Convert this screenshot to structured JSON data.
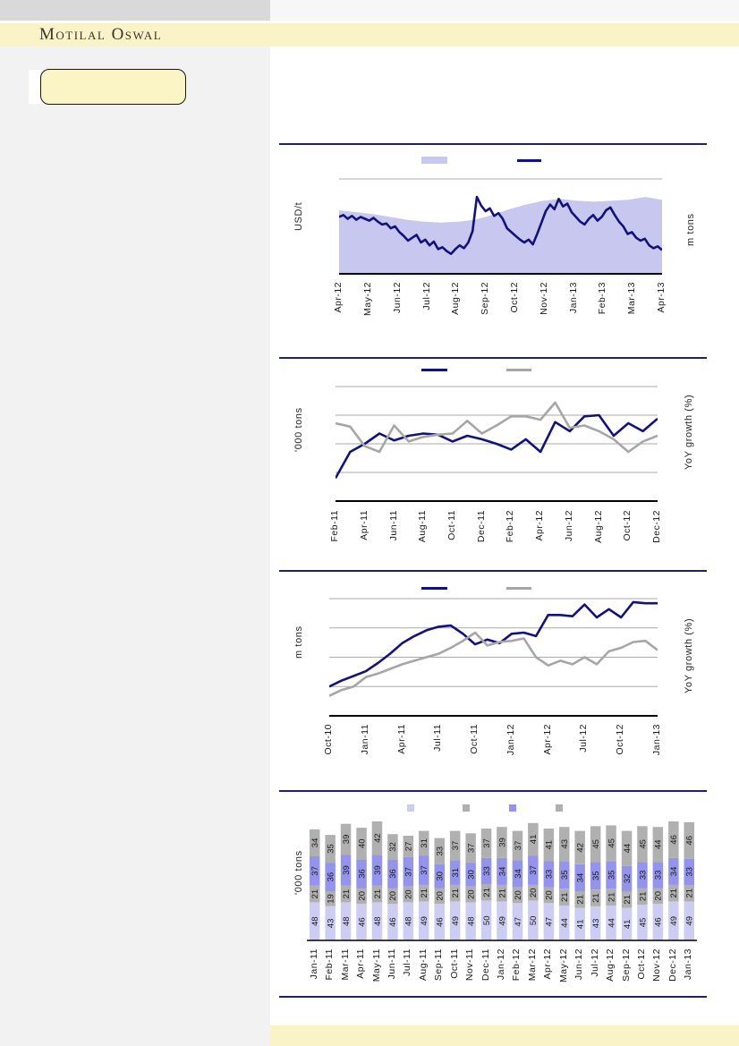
{
  "header": {
    "brand": "Motilal Oswal"
  },
  "sidebar": {
    "note_box_label": ""
  },
  "theme": {
    "brand_band": "#FAF3C8",
    "brand_text": "#39332C",
    "topbar_left": "#D9D9D9",
    "topbar_right": "#F7F7F7",
    "left_column": "#F2F2F2",
    "note_box_fill": "#FBF4C4",
    "divider": "#1F1F78",
    "grid_color": "#A9A9A9",
    "navy": "#12127D",
    "gray_line": "#A6A6A6",
    "area_lavender": "#C7C7F0",
    "bar_light": "#CDCDF4",
    "bar_gray": "#B0B0B0",
    "bar_purple": "#9494EC",
    "bottom_band": "#FAF3C8"
  },
  "chart_data": [
    {
      "type": "area_line",
      "title": "",
      "y_left": "USD/t",
      "y_right": "m tons",
      "value_scale": "percent of plot height (numeric axis tick labels not visible in source)",
      "x_labels": [
        "Apr-12",
        "May-12",
        "Jun-12",
        "Jul-12",
        "Aug-12",
        "Sep-12",
        "Oct-12",
        "Nov-12",
        "Jan-13",
        "Feb-13",
        "Mar-13",
        "Apr-13"
      ],
      "gridlines_pct": [
        100
      ],
      "series": [
        {
          "name": "",
          "type": "area",
          "color": "#C7C7F0",
          "values": [
            67,
            65,
            63,
            60,
            57,
            55,
            54,
            55,
            57,
            62,
            68,
            73,
            77,
            79,
            77,
            76,
            77,
            78,
            81,
            78
          ]
        },
        {
          "name": "",
          "type": "line",
          "color": "#12127D",
          "width": 2.6,
          "values": [
            60,
            62,
            58,
            61,
            57,
            60,
            58,
            56,
            59,
            55,
            52,
            53,
            48,
            50,
            44,
            40,
            35,
            38,
            41,
            33,
            36,
            30,
            34,
            26,
            28,
            24,
            21,
            26,
            30,
            27,
            33,
            45,
            81,
            72,
            66,
            69,
            61,
            64,
            58,
            48,
            44,
            40,
            36,
            33,
            36,
            31,
            42,
            54,
            66,
            73,
            68,
            79,
            71,
            74,
            65,
            60,
            55,
            52,
            58,
            62,
            56,
            60,
            67,
            70,
            62,
            55,
            50,
            42,
            44,
            38,
            35,
            37,
            30,
            27,
            29,
            25
          ]
        }
      ]
    },
    {
      "type": "line",
      "title": "",
      "y_left": "'000 tons",
      "y_right": "YoY growth (%)",
      "value_scale": "percent of plot height (numeric axis tick labels not visible in source)",
      "x_labels": [
        "Feb-11",
        "Apr-11",
        "Jun-11",
        "Aug-11",
        "Oct-11",
        "Dec-11",
        "Feb-12",
        "Apr-12",
        "Jun-12",
        "Aug-12",
        "Oct-12",
        "Dec-12"
      ],
      "gridlines_pct": [
        25,
        50,
        75,
        100
      ],
      "series": [
        {
          "name": "",
          "type": "line",
          "color": "#12127D",
          "width": 2.6,
          "values": [
            20,
            43,
            50,
            59,
            53,
            57,
            59,
            58,
            52,
            57,
            54,
            50,
            45,
            54,
            43,
            69,
            61,
            74,
            75,
            57,
            68,
            61,
            72
          ]
        },
        {
          "name": "",
          "type": "line",
          "color": "#A6A6A6",
          "width": 2.6,
          "values": [
            68,
            65,
            48,
            43,
            66,
            52,
            56,
            58,
            59,
            70,
            59,
            66,
            74,
            74,
            71,
            86,
            64,
            66,
            61,
            54,
            43,
            52,
            57
          ]
        }
      ]
    },
    {
      "type": "line",
      "title": "",
      "y_left": "m tons",
      "y_right": "YoY growth (%)",
      "value_scale": "percent of plot height (numeric axis tick labels not visible in source)",
      "x_labels": [
        "Oct-10",
        "Jan-11",
        "Apr-11",
        "Jul-11",
        "Oct-11",
        "Jan-12",
        "Apr-12",
        "Jul-12",
        "Oct-12",
        "Jan-13"
      ],
      "gridlines_pct": [
        25,
        50,
        75,
        100
      ],
      "series": [
        {
          "name": "",
          "type": "line",
          "color": "#12127D",
          "width": 2.6,
          "values": [
            25,
            30,
            34,
            38,
            45,
            53,
            62,
            68,
            73,
            76,
            77,
            70,
            61,
            65,
            62,
            70,
            71,
            68,
            86,
            86,
            85,
            95,
            84,
            91,
            84,
            97,
            96,
            96
          ]
        },
        {
          "name": "",
          "type": "line",
          "color": "#A6A6A6",
          "width": 2.6,
          "values": [
            17,
            22,
            25,
            33,
            36,
            40,
            44,
            47,
            50,
            53,
            58,
            64,
            71,
            60,
            63,
            64,
            66,
            50,
            43,
            47,
            44,
            50,
            44,
            55,
            58,
            63,
            64,
            56
          ]
        }
      ]
    },
    {
      "type": "stacked_bar",
      "title": "",
      "y_left": "'000 tons",
      "y_right": "",
      "value_scale": "'000 tons (values shown as data labels on bars)",
      "x_labels": [
        "Jan-11",
        "Feb-11",
        "Mar-11",
        "Apr-11",
        "May-11",
        "Jun-11",
        "Jul-11",
        "Aug-11",
        "Sep-11",
        "Oct-11",
        "Nov-11",
        "Dec-11",
        "Jan-12",
        "Feb-12",
        "Mar-12",
        "Apr-12",
        "May-12",
        "Jun-12",
        "Jul-12",
        "Aug-12",
        "Sep-12",
        "Oct-12",
        "Nov-12",
        "Dec-12",
        "Jan-13"
      ],
      "gridlines_pct": [],
      "series": [
        {
          "name": "",
          "type": "bar",
          "color": "#CDCDF4",
          "values": [
            48,
            43,
            48,
            46,
            48,
            46,
            48,
            49,
            46,
            49,
            48,
            50,
            49,
            47,
            50,
            47,
            44,
            41,
            43,
            44,
            41,
            45,
            46,
            49,
            49
          ]
        },
        {
          "name": "",
          "type": "bar",
          "color": "#B0B0B0",
          "values": [
            21,
            19,
            21,
            20,
            21,
            20,
            20,
            21,
            20,
            21,
            20,
            21,
            21,
            20,
            20,
            20,
            21,
            21,
            21,
            21,
            21,
            21,
            20,
            21,
            21
          ]
        },
        {
          "name": "",
          "type": "bar",
          "color": "#9494EC",
          "values": [
            37,
            36,
            39,
            36,
            39,
            36,
            37,
            37,
            30,
            31,
            30,
            33,
            34,
            34,
            37,
            33,
            35,
            34,
            35,
            35,
            32,
            33,
            33,
            34,
            33
          ]
        },
        {
          "name": "",
          "type": "bar",
          "color": "#B0B0B0",
          "values": [
            34,
            35,
            39,
            40,
            42,
            32,
            27,
            31,
            33,
            37,
            37,
            37,
            39,
            37,
            41,
            41,
            43,
            42,
            45,
            45,
            44,
            45,
            44,
            46,
            46
          ]
        }
      ]
    }
  ]
}
